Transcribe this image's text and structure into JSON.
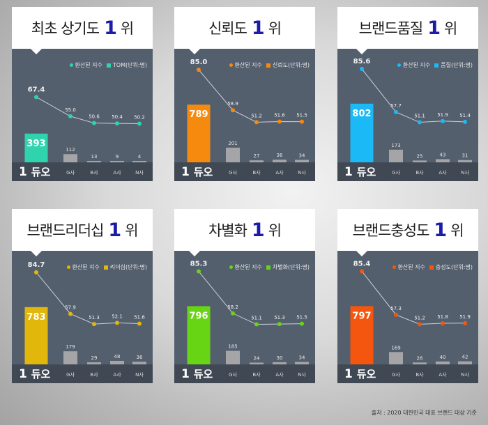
{
  "logo_text": "듀오",
  "legend_series1": "환산된 지수",
  "source": "출처 : 2020 대한민국 대표 브랜드 대상 기준",
  "cards": [
    {
      "title_pre": "최초 상기도",
      "rank": "1",
      "rank_suffix": "위",
      "legend2": "TOM(단위:명)",
      "color": "#2fd3ad"
    },
    {
      "title_pre": "신뢰도",
      "rank": "1",
      "rank_suffix": "위",
      "legend2": "신뢰도(단위:명)",
      "color": "#f58a0f"
    },
    {
      "title_pre": "브랜드품질",
      "rank": "1",
      "rank_suffix": "위",
      "legend2": "품질(단위:명)",
      "color": "#1bb9f5"
    },
    {
      "title_pre": "브랜드리더십",
      "rank": "1",
      "rank_suffix": "위",
      "legend2": "리더십(단위:명)",
      "color": "#e1b70c"
    },
    {
      "title_pre": "차별화",
      "rank": "1",
      "rank_suffix": "위",
      "legend2": "차별화(단위:명)",
      "color": "#67d414"
    },
    {
      "title_pre": "브랜드충성도",
      "rank": "1",
      "rank_suffix": "위",
      "legend2": "충성도(단위:명)",
      "color": "#f4560f"
    }
  ],
  "chart_data": [
    {
      "type": "bar+line",
      "title": "최초 상기도 1위",
      "categories": [
        "듀오",
        "G사",
        "B사",
        "A사",
        "N사"
      ],
      "series": [
        {
          "name": "TOM(단위:명)",
          "values": [
            393,
            112,
            13,
            9,
            4
          ]
        },
        {
          "name": "환산된 지수",
          "values": [
            67.4,
            55.0,
            50.6,
            50.4,
            50.2
          ]
        }
      ]
    },
    {
      "type": "bar+line",
      "title": "신뢰도 1위",
      "categories": [
        "듀오",
        "G사",
        "B사",
        "A사",
        "N사"
      ],
      "series": [
        {
          "name": "신뢰도(단위:명)",
          "values": [
            789,
            201,
            27,
            36,
            34
          ]
        },
        {
          "name": "환산된 지수",
          "values": [
            85.0,
            58.9,
            51.2,
            51.6,
            51.5
          ]
        }
      ]
    },
    {
      "type": "bar+line",
      "title": "브랜드품질 1위",
      "categories": [
        "듀오",
        "G사",
        "B사",
        "A사",
        "N사"
      ],
      "series": [
        {
          "name": "품질(단위:명)",
          "values": [
            802,
            173,
            25,
            43,
            31
          ]
        },
        {
          "name": "환산된 지수",
          "values": [
            85.6,
            57.7,
            51.1,
            51.9,
            51.4
          ]
        }
      ]
    },
    {
      "type": "bar+line",
      "title": "브랜드리더십 1위",
      "categories": [
        "듀오",
        "G사",
        "B사",
        "A사",
        "N사"
      ],
      "series": [
        {
          "name": "리더십(단위:명)",
          "values": [
            783,
            179,
            29,
            48,
            36
          ]
        },
        {
          "name": "환산된 지수",
          "values": [
            84.7,
            57.9,
            51.3,
            52.1,
            51.6
          ]
        }
      ]
    },
    {
      "type": "bar+line",
      "title": "차별화 1위",
      "categories": [
        "듀오",
        "G사",
        "B사",
        "A사",
        "N사"
      ],
      "series": [
        {
          "name": "차별화(단위:명)",
          "values": [
            796,
            185,
            24,
            30,
            34
          ]
        },
        {
          "name": "환산된 지수",
          "values": [
            85.3,
            58.2,
            51.1,
            51.3,
            51.5
          ]
        }
      ]
    },
    {
      "type": "bar+line",
      "title": "브랜드충성도 1위",
      "categories": [
        "듀오",
        "G사",
        "B사",
        "A사",
        "N사"
      ],
      "series": [
        {
          "name": "충성도(단위:명)",
          "values": [
            797,
            169,
            26,
            40,
            42
          ]
        },
        {
          "name": "환산된 지수",
          "values": [
            85.4,
            57.3,
            51.2,
            51.8,
            51.9
          ]
        }
      ]
    }
  ]
}
